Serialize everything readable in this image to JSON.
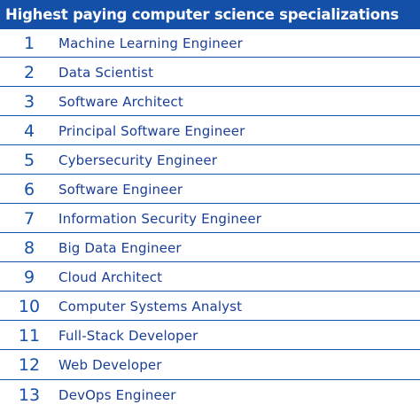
{
  "header": {
    "title": "Highest paying computer science specializations"
  },
  "colors": {
    "accent": "#1550a8",
    "text": "#1a3f96",
    "background": "#ffffff"
  },
  "items": [
    {
      "rank": "1",
      "label": "Machine Learning Engineer"
    },
    {
      "rank": "2",
      "label": "Data Scientist"
    },
    {
      "rank": "3",
      "label": "Software Architect"
    },
    {
      "rank": "4",
      "label": "Principal Software Engineer"
    },
    {
      "rank": "5",
      "label": "Cybersecurity Engineer"
    },
    {
      "rank": "6",
      "label": "Software Engineer"
    },
    {
      "rank": "7",
      "label": "Information Security Engineer"
    },
    {
      "rank": "8",
      "label": "Big Data Engineer"
    },
    {
      "rank": "9",
      "label": "Cloud Architect"
    },
    {
      "rank": "10",
      "label": "Computer Systems Analyst"
    },
    {
      "rank": "11",
      "label": "Full-Stack Developer"
    },
    {
      "rank": "12",
      "label": "Web Developer"
    },
    {
      "rank": "13",
      "label": "DevOps Engineer"
    }
  ]
}
